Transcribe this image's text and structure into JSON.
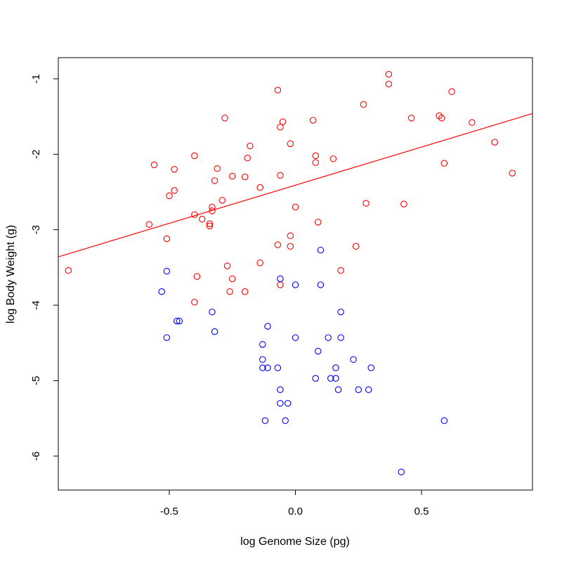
{
  "chart_data": {
    "type": "scatter",
    "title": "",
    "xlabel": "log Genome Size (pg)",
    "ylabel": "log Body Weight (g)",
    "xlim": [
      -0.94,
      0.94
    ],
    "ylim": [
      -6.45,
      -0.72
    ],
    "x_ticks": [
      {
        "value": -0.5,
        "label": "-0.5"
      },
      {
        "value": 0.0,
        "label": "0.0"
      },
      {
        "value": 0.5,
        "label": "0.5"
      }
    ],
    "y_ticks": [
      {
        "value": -1,
        "label": "-1"
      },
      {
        "value": -2,
        "label": "-2"
      },
      {
        "value": -3,
        "label": "-3"
      },
      {
        "value": -4,
        "label": "-4"
      },
      {
        "value": -5,
        "label": "-5"
      },
      {
        "value": -6,
        "label": "-6"
      }
    ],
    "grid": false,
    "series": [
      {
        "color": "#ff0000",
        "marker": "open-circle",
        "points": [
          [
            -0.9,
            -3.54
          ],
          [
            -0.58,
            -2.93
          ],
          [
            -0.56,
            -2.14
          ],
          [
            -0.51,
            -3.12
          ],
          [
            -0.5,
            -2.55
          ],
          [
            -0.48,
            -2.2
          ],
          [
            -0.48,
            -2.48
          ],
          [
            -0.4,
            -2.02
          ],
          [
            -0.4,
            -2.8
          ],
          [
            -0.39,
            -3.62
          ],
          [
            -0.37,
            -2.86
          ],
          [
            -0.4,
            -3.96
          ],
          [
            -0.34,
            -2.92
          ],
          [
            -0.34,
            -2.95
          ],
          [
            -0.33,
            -2.7
          ],
          [
            -0.33,
            -2.75
          ],
          [
            -0.32,
            -2.35
          ],
          [
            -0.31,
            -2.19
          ],
          [
            -0.29,
            -2.61
          ],
          [
            -0.28,
            -1.52
          ],
          [
            -0.27,
            -3.48
          ],
          [
            -0.26,
            -3.82
          ],
          [
            -0.25,
            -3.65
          ],
          [
            -0.25,
            -2.29
          ],
          [
            -0.2,
            -2.3
          ],
          [
            -0.19,
            -2.05
          ],
          [
            -0.18,
            -1.89
          ],
          [
            -0.2,
            -3.82
          ],
          [
            -0.14,
            -2.44
          ],
          [
            -0.14,
            -3.44
          ],
          [
            -0.07,
            -1.15
          ],
          [
            -0.07,
            -3.2
          ],
          [
            -0.06,
            -1.64
          ],
          [
            -0.06,
            -2.28
          ],
          [
            -0.05,
            -1.57
          ],
          [
            -0.06,
            -3.73
          ],
          [
            -0.02,
            -1.86
          ],
          [
            -0.02,
            -3.08
          ],
          [
            -0.02,
            -3.22
          ],
          [
            0.0,
            -2.7
          ],
          [
            0.07,
            -1.55
          ],
          [
            0.08,
            -2.02
          ],
          [
            0.08,
            -2.11
          ],
          [
            0.09,
            -2.9
          ],
          [
            0.15,
            -2.06
          ],
          [
            0.18,
            -3.54
          ],
          [
            0.24,
            -3.22
          ],
          [
            0.27,
            -1.34
          ],
          [
            0.28,
            -2.65
          ],
          [
            0.37,
            -0.94
          ],
          [
            0.37,
            -1.07
          ],
          [
            0.43,
            -2.66
          ],
          [
            0.46,
            -1.52
          ],
          [
            0.57,
            -1.49
          ],
          [
            0.58,
            -1.52
          ],
          [
            0.59,
            -2.12
          ],
          [
            0.62,
            -1.17
          ],
          [
            0.7,
            -1.58
          ],
          [
            0.79,
            -1.84
          ],
          [
            0.86,
            -2.25
          ]
        ]
      },
      {
        "color": "#0000ff",
        "marker": "open-circle",
        "points": [
          [
            -0.51,
            -3.55
          ],
          [
            -0.53,
            -3.82
          ],
          [
            -0.47,
            -4.21
          ],
          [
            -0.46,
            -4.21
          ],
          [
            -0.51,
            -4.43
          ],
          [
            -0.33,
            -4.09
          ],
          [
            -0.32,
            -4.35
          ],
          [
            -0.11,
            -4.28
          ],
          [
            -0.13,
            -4.52
          ],
          [
            -0.13,
            -4.72
          ],
          [
            -0.13,
            -4.83
          ],
          [
            -0.11,
            -4.83
          ],
          [
            -0.07,
            -4.83
          ],
          [
            -0.06,
            -5.12
          ],
          [
            -0.06,
            -5.3
          ],
          [
            -0.03,
            -5.3
          ],
          [
            -0.04,
            -5.53
          ],
          [
            -0.12,
            -5.53
          ],
          [
            -0.06,
            -3.65
          ],
          [
            0.0,
            -3.73
          ],
          [
            0.1,
            -3.27
          ],
          [
            0.1,
            -3.73
          ],
          [
            0.0,
            -4.43
          ],
          [
            0.09,
            -4.61
          ],
          [
            0.13,
            -4.43
          ],
          [
            0.18,
            -4.09
          ],
          [
            0.18,
            -4.43
          ],
          [
            0.08,
            -4.97
          ],
          [
            0.14,
            -4.97
          ],
          [
            0.16,
            -4.97
          ],
          [
            0.16,
            -4.83
          ],
          [
            0.17,
            -5.12
          ],
          [
            0.23,
            -4.72
          ],
          [
            0.25,
            -5.12
          ],
          [
            0.29,
            -5.12
          ],
          [
            0.3,
            -4.83
          ],
          [
            0.42,
            -6.21
          ],
          [
            0.59,
            -5.53
          ]
        ]
      }
    ],
    "fit_line": {
      "color": "#ff0000",
      "from": [
        -0.94,
        -3.36
      ],
      "to": [
        0.94,
        -1.46
      ]
    }
  }
}
